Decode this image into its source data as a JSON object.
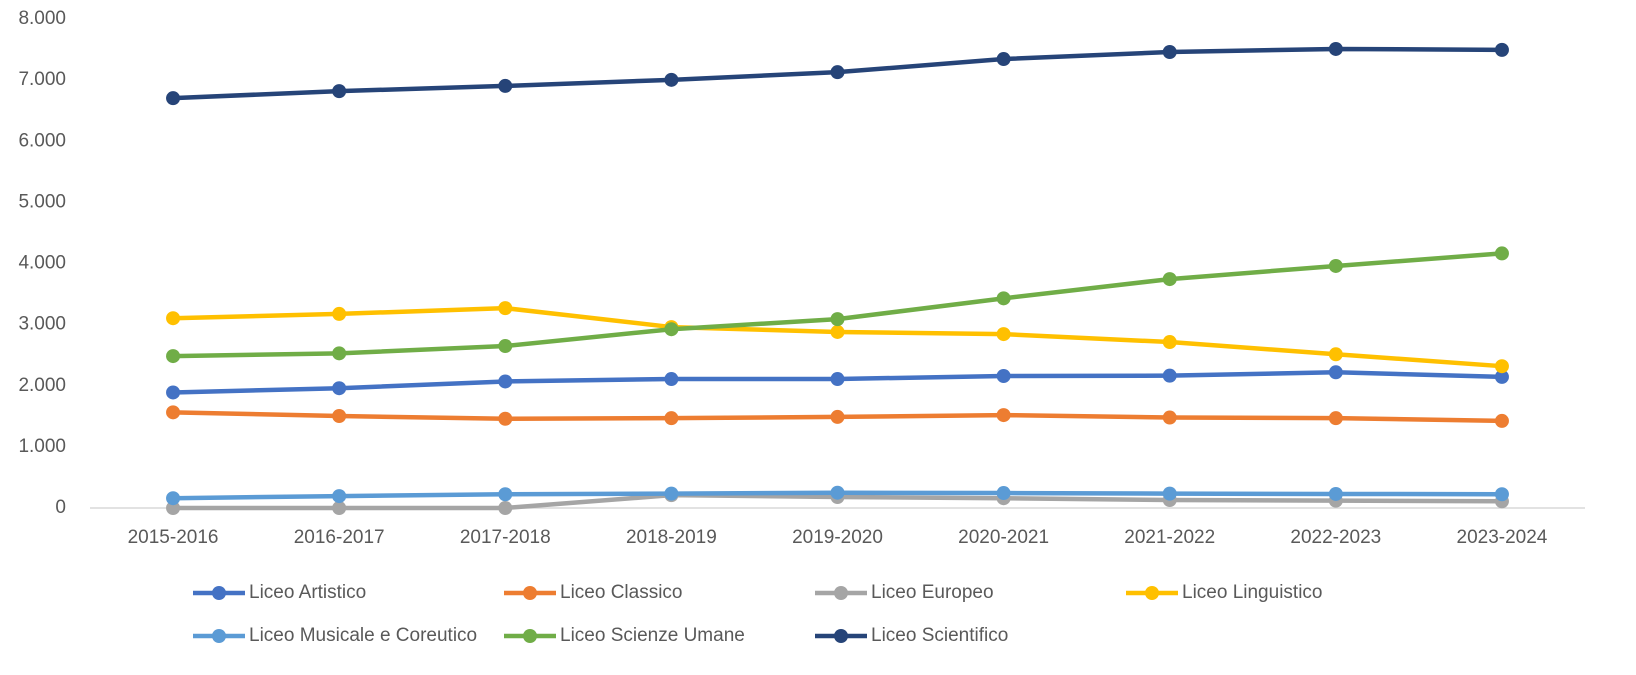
{
  "chart_data": {
    "type": "line",
    "categories": [
      "2015-2016",
      "2016-2017",
      "2017-2018",
      "2018-2019",
      "2019-2020",
      "2020-2021",
      "2021-2022",
      "2022-2023",
      "2023-2024"
    ],
    "series": [
      {
        "name": "Liceo Artistico",
        "color": "#4472c4",
        "values": [
          1890,
          1960,
          2070,
          2110,
          2110,
          2160,
          2165,
          2220,
          2145
        ]
      },
      {
        "name": "Liceo Classico",
        "color": "#ed7d31",
        "values": [
          1565,
          1505,
          1460,
          1470,
          1490,
          1520,
          1480,
          1470,
          1425
        ]
      },
      {
        "name": "Liceo Europeo",
        "color": "#a5a5a5",
        "values": [
          0,
          0,
          0,
          210,
          180,
          160,
          130,
          120,
          110
        ]
      },
      {
        "name": "Liceo Linguistico",
        "color": "#ffc000",
        "values": [
          3105,
          3175,
          3270,
          2960,
          2880,
          2845,
          2715,
          2515,
          2320
        ]
      },
      {
        "name": "Liceo Musicale e Coreutico",
        "color": "#5b9bd5",
        "values": [
          160,
          195,
          225,
          235,
          250,
          245,
          235,
          230,
          225
        ]
      },
      {
        "name": "Liceo Scienze Umane",
        "color": "#70ad47",
        "values": [
          2485,
          2530,
          2650,
          2925,
          3090,
          3430,
          3745,
          3960,
          4165
        ]
      },
      {
        "name": "Liceo Scientifico",
        "color": "#264478",
        "values": [
          6705,
          6820,
          6905,
          7005,
          7130,
          7345,
          7460,
          7510,
          7495
        ]
      }
    ],
    "ylim": [
      0,
      8000
    ],
    "yticks": [
      0,
      {
        "value": 1000,
        "label": "1.000"
      },
      {
        "value": 2000,
        "label": "2.000"
      },
      {
        "value": 3000,
        "label": "3.000"
      },
      {
        "value": 4000,
        "label": "4.000"
      },
      {
        "value": 5000,
        "label": "5.000"
      },
      {
        "value": 6000,
        "label": "6.000"
      },
      {
        "value": 7000,
        "label": "7.000"
      },
      {
        "value": 8000,
        "label": "8.000"
      }
    ],
    "grid": false,
    "legend": "bottom"
  }
}
